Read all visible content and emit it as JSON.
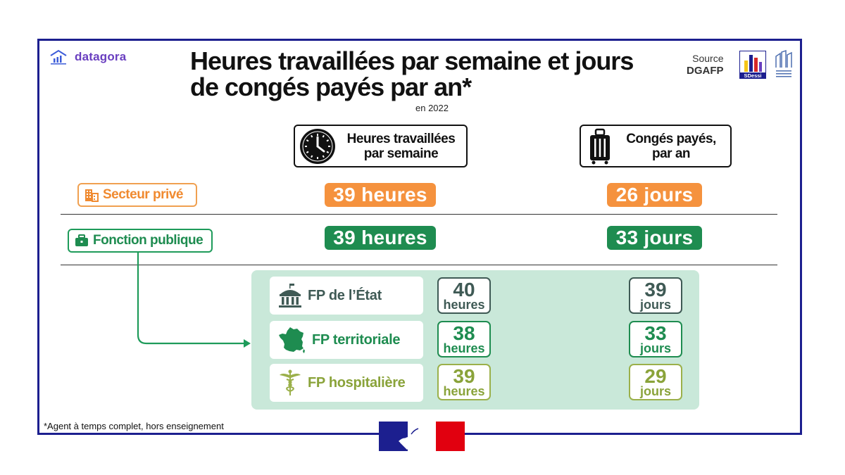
{
  "brand": {
    "name": "datagora",
    "icon": "bar-chart-home-icon"
  },
  "title": "Heures travaillées par semaine et jours de congés payés par an*",
  "subtitle": "en 2022",
  "source": {
    "label": "Source",
    "org": "DGAFP",
    "logo_text": "SDessi"
  },
  "columns": {
    "hours": {
      "label_line1": "Heures travaillées",
      "label_line2": "par semaine",
      "icon": "clock-icon"
    },
    "leave": {
      "label_line1": "Congés payés,",
      "label_line2": "par an",
      "icon": "suitcase-icon"
    }
  },
  "rows": {
    "prive": {
      "label": "Secteur privé",
      "icon": "building-icon",
      "hours": "39 heures",
      "leave": "26 jours"
    },
    "public": {
      "label": "Fonction publique",
      "icon": "briefcase-icon",
      "hours": "39 heures",
      "leave": "33 jours"
    }
  },
  "fp": [
    {
      "label": "FP de l’État",
      "icon": "government-building-icon",
      "hours_n": "40",
      "hours_u": "heures",
      "leave_n": "39",
      "leave_u": "jours"
    },
    {
      "label": "FP territoriale",
      "icon": "france-map-icon",
      "hours_n": "38",
      "hours_u": "heures",
      "leave_n": "33",
      "leave_u": "jours"
    },
    {
      "label": "FP hospitalière",
      "icon": "caduceus-icon",
      "hours_n": "39",
      "hours_u": "heures",
      "leave_n": "29",
      "leave_u": "jours"
    }
  ],
  "footnote": "*Agent à temps complet, hors enseignement",
  "colors": {
    "frame": "#1c1f8f",
    "orange": "#f5923e",
    "green": "#1e8c50",
    "panel": "#c9e8d9",
    "etat": "#3f5a55",
    "hosp": "#8aa33a",
    "brand": "#6a3fc0"
  }
}
